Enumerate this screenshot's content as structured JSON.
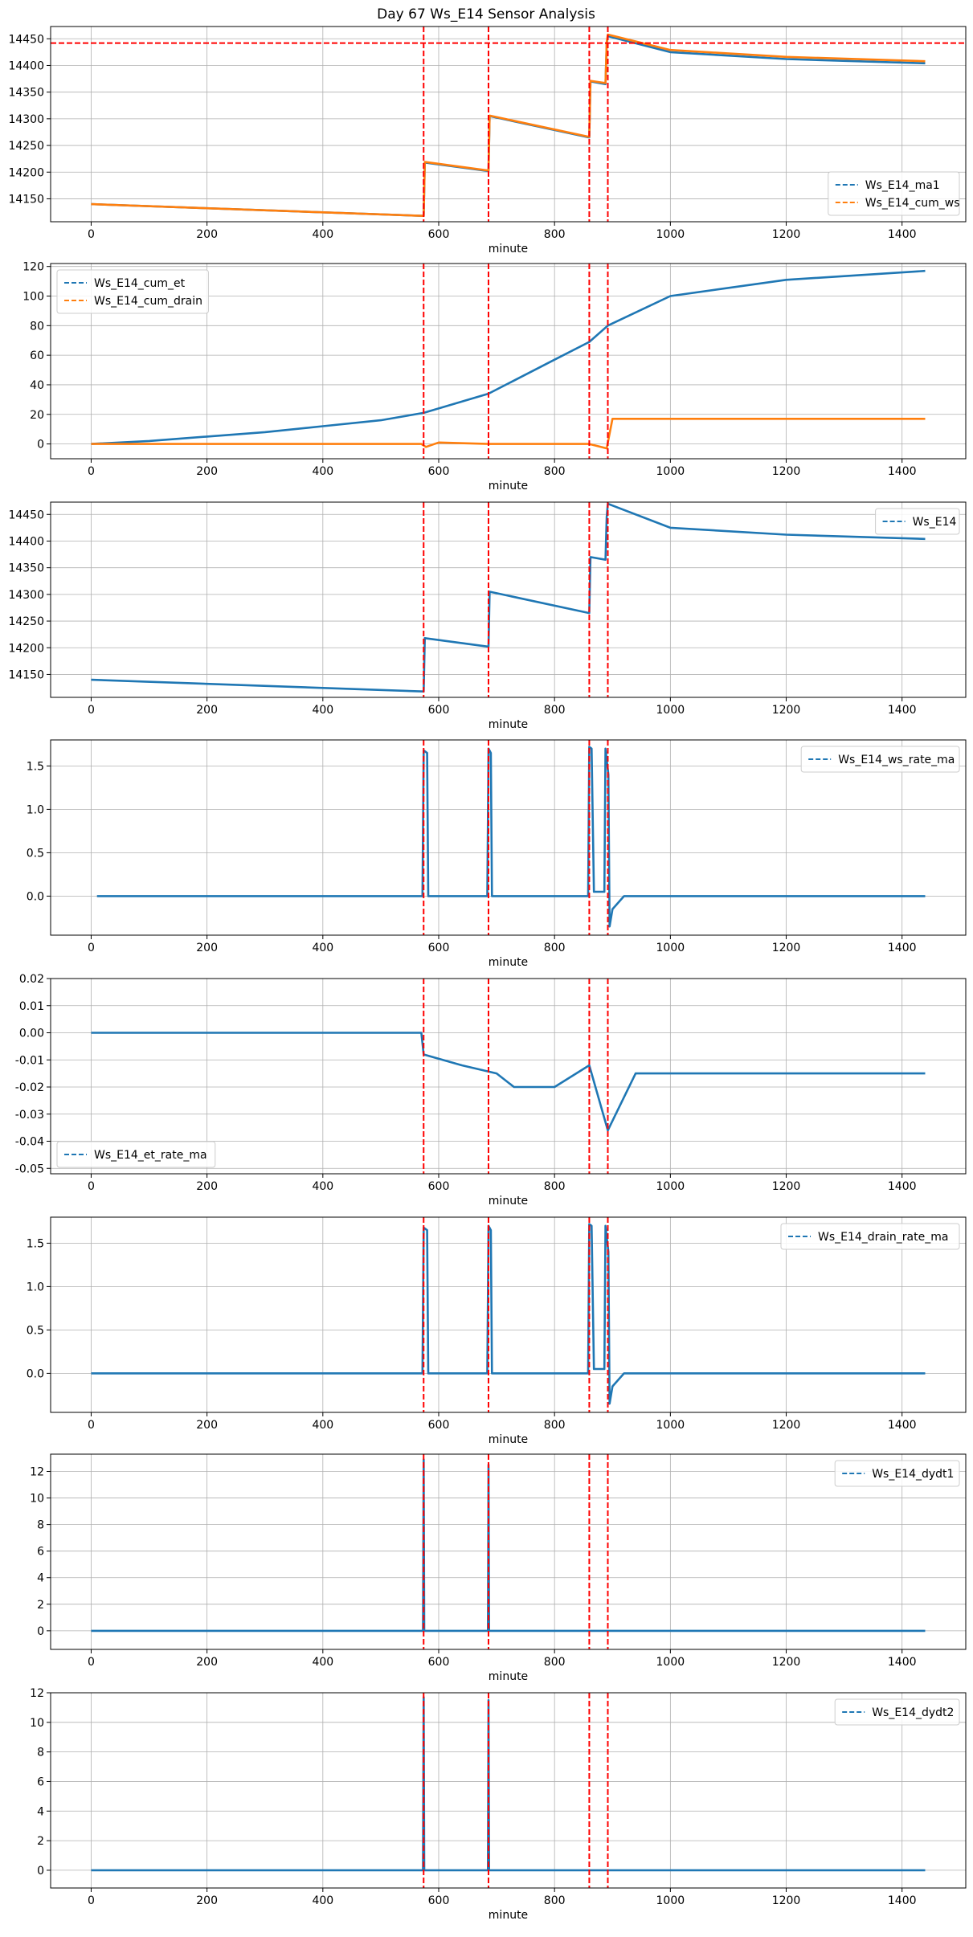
{
  "title": "Day 67 Ws_E14 Sensor Analysis",
  "colors": {
    "blue": "#1f77b4",
    "orange": "#ff7f0e",
    "red": "#ff0000",
    "grid": "#b0b0b0"
  },
  "events_x": [
    574,
    686,
    860,
    892
  ],
  "chart_data": [
    {
      "type": "line",
      "xlabel": "minute",
      "xlim": [
        -70,
        1510
      ],
      "ylim": [
        14107,
        14473
      ],
      "x_ticks": [
        0,
        200,
        400,
        600,
        800,
        1000,
        1200,
        1400
      ],
      "y_ticks": [
        14150,
        14200,
        14250,
        14300,
        14350,
        14400,
        14450
      ],
      "y_tick_labels": [
        "14150",
        "14200",
        "14250",
        "14300",
        "14350",
        "14400",
        "14450"
      ],
      "legend": "lower-right",
      "hline": 14442,
      "series": [
        {
          "name": "Ws_E14_ma1",
          "color": "blue",
          "points": [
            [
              0,
              14140
            ],
            [
              574,
              14118
            ],
            [
              576,
              14218
            ],
            [
              686,
              14202
            ],
            [
              688,
              14305
            ],
            [
              860,
              14265
            ],
            [
              862,
              14370
            ],
            [
              888,
              14365
            ],
            [
              890,
              14440
            ],
            [
              892,
              14455
            ],
            [
              1000,
              14425
            ],
            [
              1200,
              14412
            ],
            [
              1440,
              14404
            ]
          ]
        },
        {
          "name": "Ws_E14_cum_ws",
          "color": "orange",
          "points": [
            [
              0,
              14140
            ],
            [
              574,
              14118
            ],
            [
              576,
              14219
            ],
            [
              686,
              14203
            ],
            [
              688,
              14306
            ],
            [
              860,
              14266
            ],
            [
              862,
              14371
            ],
            [
              888,
              14367
            ],
            [
              890,
              14443
            ],
            [
              892,
              14458
            ],
            [
              1000,
              14429
            ],
            [
              1200,
              14416
            ],
            [
              1440,
              14408
            ]
          ]
        }
      ]
    },
    {
      "type": "line",
      "xlabel": "minute",
      "xlim": [
        -70,
        1510
      ],
      "ylim": [
        -10,
        122
      ],
      "x_ticks": [
        0,
        200,
        400,
        600,
        800,
        1000,
        1200,
        1400
      ],
      "y_ticks": [
        0,
        20,
        40,
        60,
        80,
        100,
        120
      ],
      "y_tick_labels": [
        "0",
        "20",
        "40",
        "60",
        "80",
        "100",
        "120"
      ],
      "legend": "upper-left",
      "series": [
        {
          "name": "Ws_E14_cum_et",
          "color": "blue",
          "points": [
            [
              0,
              0
            ],
            [
              100,
              2
            ],
            [
              200,
              5
            ],
            [
              300,
              8
            ],
            [
              400,
              12
            ],
            [
              500,
              16
            ],
            [
              574,
              21
            ],
            [
              686,
              34
            ],
            [
              800,
              57
            ],
            [
              860,
              69
            ],
            [
              892,
              80
            ],
            [
              1000,
              100
            ],
            [
              1200,
              111
            ],
            [
              1440,
              117
            ]
          ]
        },
        {
          "name": "Ws_E14_cum_drain",
          "color": "orange",
          "points": [
            [
              0,
              0
            ],
            [
              570,
              0
            ],
            [
              578,
              -2
            ],
            [
              600,
              1
            ],
            [
              686,
              0
            ],
            [
              860,
              0
            ],
            [
              880,
              -2
            ],
            [
              890,
              -3
            ],
            [
              900,
              17
            ],
            [
              1440,
              17
            ]
          ]
        }
      ]
    },
    {
      "type": "line",
      "xlabel": "minute",
      "xlim": [
        -70,
        1510
      ],
      "ylim": [
        14107,
        14473
      ],
      "x_ticks": [
        0,
        200,
        400,
        600,
        800,
        1000,
        1200,
        1400
      ],
      "y_ticks": [
        14150,
        14200,
        14250,
        14300,
        14350,
        14400,
        14450
      ],
      "y_tick_labels": [
        "14150",
        "14200",
        "14250",
        "14300",
        "14350",
        "14400",
        "14450"
      ],
      "legend": "upper-right",
      "series": [
        {
          "name": "Ws_E14",
          "color": "blue",
          "points": [
            [
              0,
              14140
            ],
            [
              574,
              14118
            ],
            [
              576,
              14218
            ],
            [
              686,
              14202
            ],
            [
              688,
              14305
            ],
            [
              860,
              14265
            ],
            [
              862,
              14370
            ],
            [
              888,
              14365
            ],
            [
              890,
              14445
            ],
            [
              892,
              14470
            ],
            [
              1000,
              14425
            ],
            [
              1200,
              14412
            ],
            [
              1440,
              14404
            ]
          ]
        }
      ]
    },
    {
      "type": "line",
      "xlabel": "minute",
      "xlim": [
        -70,
        1510
      ],
      "ylim": [
        -0.45,
        1.8
      ],
      "x_ticks": [
        0,
        200,
        400,
        600,
        800,
        1000,
        1200,
        1400
      ],
      "y_ticks": [
        0.0,
        0.5,
        1.0,
        1.5
      ],
      "y_tick_labels": [
        "0.0",
        "0.5",
        "1.0",
        "1.5"
      ],
      "legend": "upper-right",
      "series": [
        {
          "name": "Ws_E14_ws_rate_ma",
          "color": "blue",
          "points": [
            [
              10,
              0
            ],
            [
              572,
              0
            ],
            [
              574,
              1.68
            ],
            [
              580,
              1.65
            ],
            [
              582,
              0
            ],
            [
              684,
              0
            ],
            [
              686,
              1.7
            ],
            [
              690,
              1.65
            ],
            [
              692,
              0
            ],
            [
              858,
              0
            ],
            [
              860,
              1.72
            ],
            [
              864,
              1.7
            ],
            [
              868,
              0.05
            ],
            [
              886,
              0.05
            ],
            [
              888,
              1.7
            ],
            [
              893,
              1.4
            ],
            [
              895,
              -0.35
            ],
            [
              900,
              -0.15
            ],
            [
              920,
              0
            ],
            [
              1440,
              0
            ]
          ]
        }
      ]
    },
    {
      "type": "line",
      "xlabel": "minute",
      "xlim": [
        -70,
        1510
      ],
      "ylim": [
        -0.052,
        0.02
      ],
      "x_ticks": [
        0,
        200,
        400,
        600,
        800,
        1000,
        1200,
        1400
      ],
      "y_ticks": [
        -0.05,
        -0.04,
        -0.03,
        -0.02,
        -0.01,
        0.0,
        0.01,
        0.02
      ],
      "y_tick_labels": [
        "-0.05",
        "-0.04",
        "-0.03",
        "-0.02",
        "-0.01",
        "0.00",
        "0.01",
        "0.02"
      ],
      "legend": "lower-left",
      "series": [
        {
          "name": "Ws_E14_et_rate_ma",
          "color": "blue",
          "points": [
            [
              0,
              0
            ],
            [
              570,
              0
            ],
            [
              574,
              -0.008
            ],
            [
              640,
              -0.012
            ],
            [
              700,
              -0.015
            ],
            [
              730,
              -0.02
            ],
            [
              800,
              -0.02
            ],
            [
              860,
              -0.012
            ],
            [
              892,
              -0.036
            ],
            [
              940,
              -0.015
            ],
            [
              1440,
              -0.015
            ]
          ]
        }
      ]
    },
    {
      "type": "line",
      "xlabel": "minute",
      "xlim": [
        -70,
        1510
      ],
      "ylim": [
        -0.45,
        1.8
      ],
      "x_ticks": [
        0,
        200,
        400,
        600,
        800,
        1000,
        1200,
        1400
      ],
      "y_ticks": [
        0.0,
        0.5,
        1.0,
        1.5
      ],
      "y_tick_labels": [
        "0.0",
        "0.5",
        "1.0",
        "1.5"
      ],
      "legend": "upper-right",
      "series": [
        {
          "name": "Ws_E14_drain_rate_ma",
          "color": "blue",
          "points": [
            [
              0,
              0
            ],
            [
              572,
              0
            ],
            [
              574,
              1.68
            ],
            [
              580,
              1.65
            ],
            [
              582,
              0
            ],
            [
              684,
              0
            ],
            [
              686,
              1.7
            ],
            [
              690,
              1.65
            ],
            [
              692,
              0
            ],
            [
              858,
              0
            ],
            [
              860,
              1.72
            ],
            [
              864,
              1.7
            ],
            [
              868,
              0.05
            ],
            [
              886,
              0.05
            ],
            [
              888,
              1.7
            ],
            [
              893,
              1.4
            ],
            [
              895,
              -0.35
            ],
            [
              900,
              -0.15
            ],
            [
              920,
              0
            ],
            [
              1440,
              0
            ]
          ]
        }
      ]
    },
    {
      "type": "line",
      "xlabel": "minute",
      "xlim": [
        -70,
        1510
      ],
      "ylim": [
        -1.4,
        13.3
      ],
      "x_ticks": [
        0,
        200,
        400,
        600,
        800,
        1000,
        1200,
        1400
      ],
      "y_ticks": [
        0,
        2,
        4,
        6,
        8,
        10,
        12
      ],
      "y_tick_labels": [
        "0",
        "2",
        "4",
        "6",
        "8",
        "10",
        "12"
      ],
      "legend": "upper-right",
      "series": [
        {
          "name": "Ws_E14_dydt1",
          "color": "blue",
          "points": [
            [
              0,
              0
            ],
            [
              573,
              0
            ],
            [
              574,
              12.9
            ],
            [
              575,
              0
            ],
            [
              685,
              0
            ],
            [
              686,
              12.5
            ],
            [
              687,
              0
            ],
            [
              1440,
              0
            ]
          ]
        }
      ]
    },
    {
      "type": "line",
      "xlabel": "minute",
      "xlim": [
        -70,
        1510
      ],
      "ylim": [
        -1.2,
        12.0
      ],
      "x_ticks": [
        0,
        200,
        400,
        600,
        800,
        1000,
        1200,
        1400
      ],
      "y_ticks": [
        0,
        2,
        4,
        6,
        8,
        10,
        12
      ],
      "y_tick_labels": [
        "0",
        "2",
        "4",
        "6",
        "8",
        "10",
        "12"
      ],
      "legend": "upper-right",
      "series": [
        {
          "name": "Ws_E14_dydt2",
          "color": "blue",
          "points": [
            [
              0,
              0
            ],
            [
              573,
              0
            ],
            [
              574,
              11.7
            ],
            [
              575,
              0
            ],
            [
              685,
              0
            ],
            [
              686,
              11.5
            ],
            [
              687,
              0
            ],
            [
              1440,
              0
            ]
          ]
        }
      ]
    }
  ]
}
